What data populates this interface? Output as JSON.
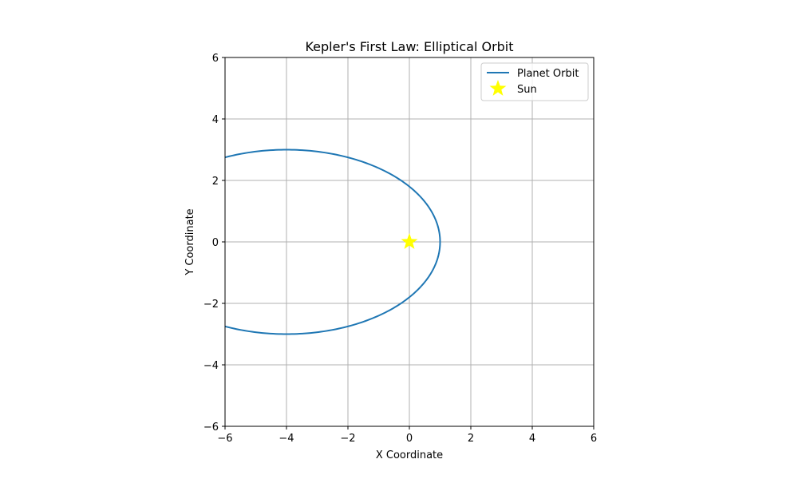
{
  "chart_data": {
    "type": "line",
    "title": "Kepler's First Law: Elliptical Orbit",
    "xlabel": "X Coordinate",
    "ylabel": "Y Coordinate",
    "xlim": [
      -6,
      6
    ],
    "ylim": [
      -6,
      6
    ],
    "xticks": [
      -6,
      -4,
      -2,
      0,
      2,
      4,
      6
    ],
    "yticks": [
      -6,
      -4,
      -2,
      0,
      2,
      4,
      6
    ],
    "grid": true,
    "legend_position": "top-right",
    "series": [
      {
        "name": "Planet Orbit",
        "kind": "ellipse",
        "center": [
          -4,
          0
        ],
        "semi_major_axis": 5,
        "semi_minor_axis": 3,
        "color": "#1f77b4"
      },
      {
        "name": "Sun",
        "kind": "marker",
        "marker": "star",
        "x": [
          0
        ],
        "y": [
          0
        ],
        "color": "#ffff00"
      }
    ]
  }
}
